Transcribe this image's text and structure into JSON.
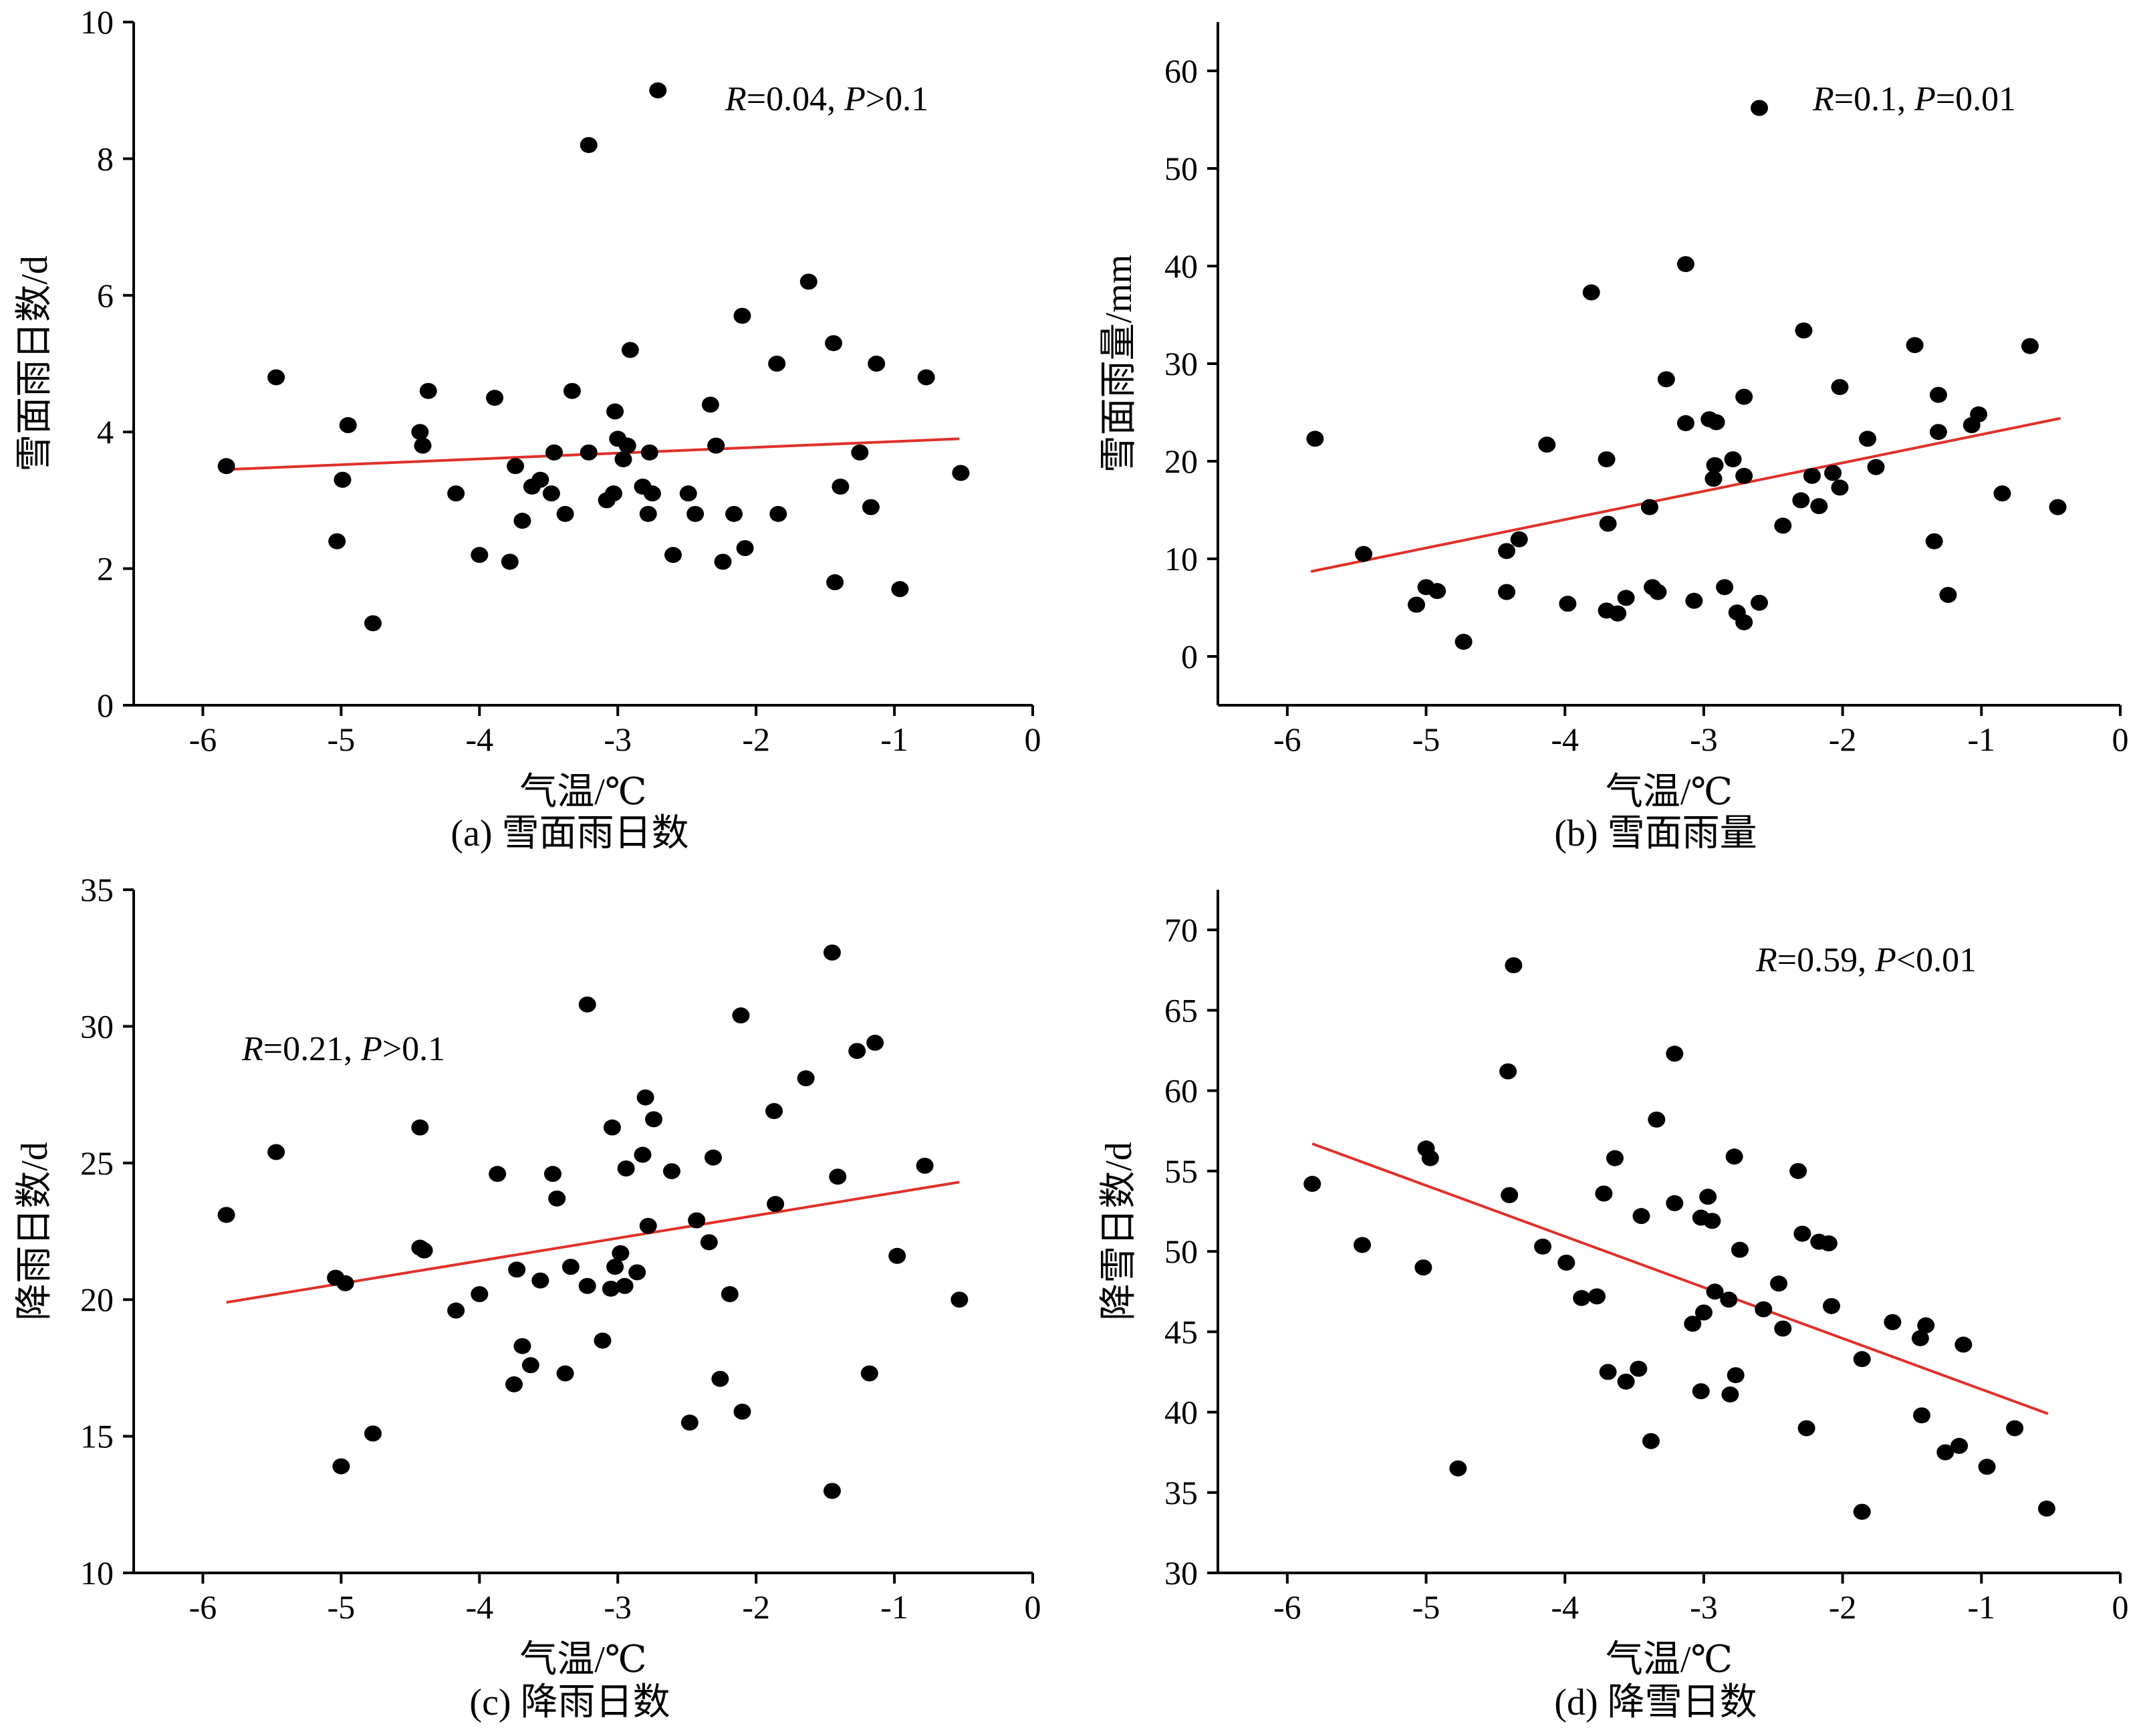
{
  "chart_data": [
    {
      "id": "a",
      "type": "scatter",
      "caption": "(a) 雪面雨日数",
      "xlabel": "气温/℃",
      "ylabel": "雪面雨日数/d",
      "xlim": [
        -6.5,
        0
      ],
      "ylim": [
        0,
        10
      ],
      "xticks": [
        -6,
        -5,
        -4,
        -3,
        -2,
        -1,
        0
      ],
      "yticks": [
        0,
        2,
        4,
        6,
        8,
        10
      ],
      "stat": {
        "r_label": "R",
        "r_value": "=0.04, ",
        "p_label": "P",
        "p_value": ">0.1"
      },
      "trend": {
        "x": [
          -5.83,
          -0.53
        ],
        "y": [
          3.45,
          3.9
        ]
      },
      "points": [
        [
          -5.83,
          3.5
        ],
        [
          -5.47,
          4.8
        ],
        [
          -5.03,
          2.4
        ],
        [
          -4.99,
          3.3
        ],
        [
          -4.95,
          4.1
        ],
        [
          -4.77,
          1.2
        ],
        [
          -4.43,
          4.0
        ],
        [
          -4.41,
          3.8
        ],
        [
          -4.37,
          4.6
        ],
        [
          -4.17,
          3.1
        ],
        [
          -4.0,
          2.2
        ],
        [
          -3.89,
          4.5
        ],
        [
          -3.78,
          2.1
        ],
        [
          -3.74,
          3.5
        ],
        [
          -3.69,
          2.7
        ],
        [
          -3.62,
          3.2
        ],
        [
          -3.56,
          3.3
        ],
        [
          -3.48,
          3.1
        ],
        [
          -3.46,
          3.7
        ],
        [
          -3.38,
          2.8
        ],
        [
          -3.33,
          4.6
        ],
        [
          -3.21,
          3.7
        ],
        [
          -3.21,
          8.2
        ],
        [
          -3.08,
          3.0
        ],
        [
          -3.03,
          3.1
        ],
        [
          -3.02,
          4.3
        ],
        [
          -3.0,
          3.9
        ],
        [
          -2.96,
          3.6
        ],
        [
          -2.93,
          3.8
        ],
        [
          -2.91,
          5.2
        ],
        [
          -2.82,
          3.2
        ],
        [
          -2.78,
          2.8
        ],
        [
          -2.77,
          3.7
        ],
        [
          -2.75,
          3.1
        ],
        [
          -2.71,
          9.0
        ],
        [
          -2.6,
          2.2
        ],
        [
          -2.49,
          3.1
        ],
        [
          -2.44,
          2.8
        ],
        [
          -2.33,
          4.4
        ],
        [
          -2.29,
          3.8
        ],
        [
          -2.24,
          2.1
        ],
        [
          -2.16,
          2.8
        ],
        [
          -2.1,
          5.7
        ],
        [
          -2.08,
          2.3
        ],
        [
          -1.85,
          5.0
        ],
        [
          -1.84,
          2.8
        ],
        [
          -1.62,
          6.2
        ],
        [
          -1.44,
          5.3
        ],
        [
          -1.43,
          1.8
        ],
        [
          -1.39,
          3.2
        ],
        [
          -1.25,
          3.7
        ],
        [
          -1.17,
          2.9
        ],
        [
          -1.13,
          5.0
        ],
        [
          -0.96,
          1.7
        ],
        [
          -0.77,
          4.8
        ],
        [
          -0.52,
          3.4
        ]
      ]
    },
    {
      "id": "b",
      "type": "scatter",
      "caption": "(b) 雪面雨量",
      "xlabel": "气温/℃",
      "ylabel": "雪面雨量/mm",
      "xlim": [
        -6.5,
        0
      ],
      "ylim": [
        -5,
        65
      ],
      "xticks": [
        -6,
        -5,
        -4,
        -3,
        -2,
        -1,
        0
      ],
      "yticks": [
        0,
        10,
        20,
        30,
        40,
        50,
        60
      ],
      "stat": {
        "r_label": "R",
        "r_value": "=0.1, ",
        "p_label": "P",
        "p_value": "=0.01"
      },
      "trend": {
        "x": [
          -5.83,
          -0.43
        ],
        "y": [
          8.7,
          24.4
        ]
      },
      "points": [
        [
          -5.8,
          22.3
        ],
        [
          -5.45,
          10.5
        ],
        [
          -5.07,
          5.3
        ],
        [
          -5.0,
          7.1
        ],
        [
          -4.92,
          6.7
        ],
        [
          -4.73,
          1.5
        ],
        [
          -4.42,
          10.8
        ],
        [
          -4.42,
          6.6
        ],
        [
          -4.33,
          12.0
        ],
        [
          -4.13,
          21.7
        ],
        [
          -3.98,
          5.4
        ],
        [
          -3.81,
          37.3
        ],
        [
          -3.7,
          20.2
        ],
        [
          -3.7,
          4.7
        ],
        [
          -3.69,
          13.6
        ],
        [
          -3.62,
          4.4
        ],
        [
          -3.56,
          6.0
        ],
        [
          -3.39,
          15.3
        ],
        [
          -3.37,
          7.1
        ],
        [
          -3.33,
          6.6
        ],
        [
          -3.27,
          28.4
        ],
        [
          -3.13,
          40.2
        ],
        [
          -3.13,
          23.9
        ],
        [
          -3.07,
          5.7
        ],
        [
          -2.96,
          24.3
        ],
        [
          -2.93,
          18.2
        ],
        [
          -2.92,
          19.6
        ],
        [
          -2.91,
          24.0
        ],
        [
          -2.85,
          7.1
        ],
        [
          -2.79,
          20.2
        ],
        [
          -2.76,
          4.5
        ],
        [
          -2.71,
          26.6
        ],
        [
          -2.71,
          18.5
        ],
        [
          -2.71,
          3.5
        ],
        [
          -2.6,
          5.5
        ],
        [
          -2.6,
          56.2
        ],
        [
          -2.43,
          13.4
        ],
        [
          -2.3,
          16.0
        ],
        [
          -2.28,
          33.4
        ],
        [
          -2.22,
          18.5
        ],
        [
          -2.17,
          15.4
        ],
        [
          -2.07,
          18.8
        ],
        [
          -2.02,
          27.6
        ],
        [
          -2.02,
          17.3
        ],
        [
          -1.76,
          19.4
        ],
        [
          -1.82,
          22.3
        ],
        [
          -1.48,
          31.9
        ],
        [
          -1.34,
          11.8
        ],
        [
          -1.31,
          23.0
        ],
        [
          -1.31,
          26.8
        ],
        [
          -1.24,
          6.3
        ],
        [
          -1.07,
          23.7
        ],
        [
          -1.02,
          24.8
        ],
        [
          -0.85,
          16.7
        ],
        [
          -0.65,
          31.8
        ],
        [
          -0.45,
          15.3
        ]
      ]
    },
    {
      "id": "c",
      "type": "scatter",
      "caption": "(c) 降雨日数",
      "xlabel": "气温/℃",
      "ylabel": "降雨日数/d",
      "xlim": [
        -6.5,
        0
      ],
      "ylim": [
        10,
        35
      ],
      "xticks": [
        -6,
        -5,
        -4,
        -3,
        -2,
        -1,
        0
      ],
      "yticks": [
        10,
        15,
        20,
        25,
        30,
        35
      ],
      "stat": {
        "r_label": "R",
        "r_value": "=0.21, ",
        "p_label": "P",
        "p_value": ">0.1"
      },
      "trend": {
        "x": [
          -5.83,
          -0.53
        ],
        "y": [
          19.9,
          24.3
        ]
      },
      "points": [
        [
          -5.83,
          23.1
        ],
        [
          -5.47,
          25.4
        ],
        [
          -5.04,
          20.8
        ],
        [
          -5.0,
          13.9
        ],
        [
          -4.97,
          20.6
        ],
        [
          -4.77,
          15.1
        ],
        [
          -4.43,
          26.3
        ],
        [
          -4.43,
          21.9
        ],
        [
          -4.4,
          21.8
        ],
        [
          -4.17,
          19.6
        ],
        [
          -4.0,
          20.2
        ],
        [
          -3.87,
          24.6
        ],
        [
          -3.75,
          16.9
        ],
        [
          -3.73,
          21.1
        ],
        [
          -3.69,
          18.3
        ],
        [
          -3.63,
          17.6
        ],
        [
          -3.56,
          20.7
        ],
        [
          -3.47,
          24.6
        ],
        [
          -3.44,
          23.7
        ],
        [
          -3.38,
          17.3
        ],
        [
          -3.34,
          21.2
        ],
        [
          -3.22,
          20.5
        ],
        [
          -3.22,
          30.8
        ],
        [
          -3.11,
          18.5
        ],
        [
          -3.05,
          20.4
        ],
        [
          -3.04,
          26.3
        ],
        [
          -3.02,
          21.2
        ],
        [
          -2.98,
          21.7
        ],
        [
          -2.95,
          20.5
        ],
        [
          -2.94,
          24.8
        ],
        [
          -2.86,
          21.0
        ],
        [
          -2.82,
          25.3
        ],
        [
          -2.8,
          27.4
        ],
        [
          -2.78,
          22.7
        ],
        [
          -2.74,
          26.6
        ],
        [
          -2.61,
          24.7
        ],
        [
          -2.48,
          15.5
        ],
        [
          -2.43,
          22.9
        ],
        [
          -2.34,
          22.1
        ],
        [
          -2.31,
          25.2
        ],
        [
          -2.26,
          17.1
        ],
        [
          -2.19,
          20.2
        ],
        [
          -2.11,
          30.4
        ],
        [
          -2.1,
          15.9
        ],
        [
          -1.86,
          23.5
        ],
        [
          -1.87,
          26.9
        ],
        [
          -1.64,
          28.1
        ],
        [
          -1.45,
          32.7
        ],
        [
          -1.45,
          13.0
        ],
        [
          -1.41,
          24.5
        ],
        [
          -1.27,
          29.1
        ],
        [
          -1.18,
          17.3
        ],
        [
          -1.14,
          29.4
        ],
        [
          -0.98,
          21.6
        ],
        [
          -0.78,
          24.9
        ],
        [
          -0.53,
          20.0
        ]
      ]
    },
    {
      "id": "d",
      "type": "scatter",
      "caption": "(d) 降雪日数",
      "xlabel": "气温/℃",
      "ylabel": "降雪日数/d",
      "xlim": [
        -6.5,
        0
      ],
      "ylim": [
        30,
        72.5
      ],
      "xticks": [
        -6,
        -5,
        -4,
        -3,
        -2,
        -1,
        0
      ],
      "yticks": [
        30,
        35,
        40,
        45,
        50,
        55,
        60,
        65,
        70
      ],
      "stat": {
        "r_label": "R",
        "r_value": "=0.59, ",
        "p_label": "P",
        "p_value": "<0.01"
      },
      "trend": {
        "x": [
          -5.82,
          -0.52
        ],
        "y": [
          56.7,
          39.9
        ]
      },
      "points": [
        [
          -5.82,
          54.2
        ],
        [
          -5.46,
          50.4
        ],
        [
          -5.02,
          49.0
        ],
        [
          -5.0,
          56.4
        ],
        [
          -4.97,
          55.8
        ],
        [
          -4.77,
          36.5
        ],
        [
          -4.41,
          61.2
        ],
        [
          -4.4,
          53.5
        ],
        [
          -4.37,
          67.8
        ],
        [
          -4.16,
          50.3
        ],
        [
          -3.99,
          49.3
        ],
        [
          -3.88,
          47.1
        ],
        [
          -3.77,
          47.2
        ],
        [
          -3.72,
          53.6
        ],
        [
          -3.69,
          42.5
        ],
        [
          -3.64,
          55.8
        ],
        [
          -3.56,
          41.9
        ],
        [
          -3.47,
          42.7
        ],
        [
          -3.45,
          52.2
        ],
        [
          -3.38,
          38.2
        ],
        [
          -3.34,
          58.2
        ],
        [
          -3.21,
          53.0
        ],
        [
          -3.21,
          62.3
        ],
        [
          -3.08,
          45.5
        ],
        [
          -3.02,
          41.3
        ],
        [
          -3.02,
          52.1
        ],
        [
          -3.0,
          46.2
        ],
        [
          -2.97,
          53.4
        ],
        [
          -2.94,
          51.9
        ],
        [
          -2.92,
          47.5
        ],
        [
          -2.82,
          47.0
        ],
        [
          -2.81,
          41.1
        ],
        [
          -2.78,
          55.9
        ],
        [
          -2.77,
          42.3
        ],
        [
          -2.74,
          50.1
        ],
        [
          -2.57,
          46.4
        ],
        [
          -2.46,
          48.0
        ],
        [
          -2.43,
          45.2
        ],
        [
          -2.32,
          55.0
        ],
        [
          -2.29,
          51.1
        ],
        [
          -2.26,
          39.0
        ],
        [
          -2.17,
          50.6
        ],
        [
          -2.1,
          50.5
        ],
        [
          -2.08,
          46.6
        ],
        [
          -1.86,
          43.3
        ],
        [
          -1.86,
          33.8
        ],
        [
          -1.64,
          45.6
        ],
        [
          -1.44,
          44.6
        ],
        [
          -1.43,
          39.8
        ],
        [
          -1.4,
          45.4
        ],
        [
          -1.26,
          37.5
        ],
        [
          -1.16,
          37.9
        ],
        [
          -1.13,
          44.2
        ],
        [
          -0.96,
          36.6
        ],
        [
          -0.76,
          39.0
        ],
        [
          -0.53,
          34.0
        ]
      ]
    }
  ]
}
